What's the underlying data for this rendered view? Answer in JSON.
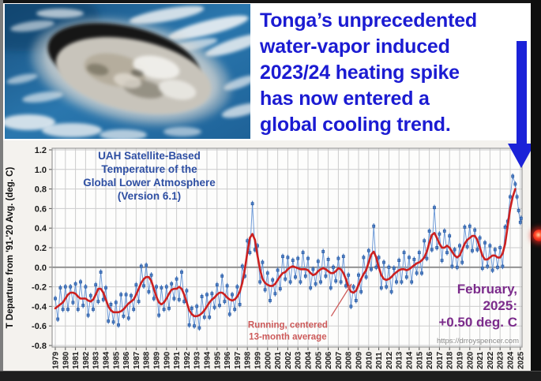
{
  "headline": {
    "color": "#1b1bd2",
    "lines": [
      "Tonga’s unprecedented",
      "water-vapor induced",
      "2023/24 heating spike",
      "has now entered a",
      "global cooling trend."
    ]
  },
  "arrow": {
    "color": "#1b22d8"
  },
  "indicator": {
    "color": "#e8281e"
  },
  "chart_data": {
    "type": "line",
    "title_lines": [
      "UAH Satellite-Based",
      "Temperature of the",
      "Global Lower Atmosphere",
      "(Version 6.1)"
    ],
    "title_color": "#2e4fa3",
    "ylabel": "T Departure from '91-'20 Avg. (deg. C)",
    "ylim": [
      -0.8,
      1.2
    ],
    "ytick_step": 0.2,
    "ytick_labels": [
      "1.2",
      "1.0",
      "0.8",
      "0.6",
      "0.4",
      "0.2",
      "0.0",
      "-0.2",
      "-0.4",
      "-0.6",
      "-0.8"
    ],
    "x_axis": {
      "start": 1979,
      "end": 2025
    },
    "years": [
      1979,
      1980,
      1981,
      1982,
      1983,
      1984,
      1985,
      1986,
      1987,
      1988,
      1989,
      1990,
      1991,
      1992,
      1993,
      1994,
      1995,
      1996,
      1997,
      1998,
      1999,
      2000,
      2001,
      2002,
      2003,
      2004,
      2005,
      2006,
      2007,
      2008,
      2009,
      2010,
      2011,
      2012,
      2013,
      2014,
      2015,
      2016,
      2017,
      2018,
      2019,
      2020,
      2021,
      2022,
      2023,
      2024,
      2025
    ],
    "grid": true,
    "legend_position": "none",
    "colors": {
      "canvas_bg": "#f4f2ee",
      "plot_bg": "#fdfdfc",
      "grid": "#cccccc",
      "zero_line": "#8c8c8c",
      "axis": "#9a9a9a",
      "tick_text": "#1a1a1a"
    },
    "annotation": {
      "text_lines": [
        "Running, centered",
        "13-month average"
      ],
      "color": "#cd5a5a",
      "text_at": {
        "x": 2002.0,
        "y": -0.62
      },
      "arrow_from": {
        "x": 2006.3,
        "y": -0.5
      },
      "arrow_to": {
        "x": 2008.3,
        "y": -0.17
      }
    },
    "value_label": {
      "lines": [
        "February,",
        "2025:",
        "+0.50 deg. C"
      ],
      "color": "#7b2b8b"
    },
    "watermark": "https://drroyspencer.com",
    "series": [
      {
        "name": "monthly-anomaly",
        "color": "#4a7ec6",
        "edge_color": "#2b5699",
        "line_color": "#6f9bd8",
        "marker": "square",
        "x_start": 1979.0,
        "x_step": 0.25,
        "y": [
          -0.32,
          -0.53,
          -0.21,
          -0.43,
          -0.2,
          -0.43,
          -0.2,
          -0.36,
          -0.17,
          -0.43,
          -0.15,
          -0.39,
          -0.2,
          -0.49,
          -0.29,
          -0.43,
          -0.18,
          -0.35,
          -0.05,
          -0.33,
          -0.21,
          -0.55,
          -0.38,
          -0.56,
          -0.36,
          -0.59,
          -0.28,
          -0.5,
          -0.28,
          -0.52,
          -0.29,
          -0.43,
          -0.18,
          -0.35,
          0.01,
          -0.19,
          0.02,
          -0.25,
          -0.08,
          -0.32,
          -0.2,
          -0.49,
          -0.21,
          -0.43,
          -0.2,
          -0.42,
          -0.17,
          -0.32,
          -0.12,
          -0.33,
          -0.05,
          -0.35,
          -0.24,
          -0.59,
          -0.42,
          -0.6,
          -0.4,
          -0.62,
          -0.3,
          -0.51,
          -0.28,
          -0.51,
          -0.27,
          -0.41,
          -0.18,
          -0.39,
          -0.09,
          -0.35,
          -0.19,
          -0.48,
          -0.28,
          -0.43,
          -0.2,
          -0.38,
          0.01,
          -0.09,
          0.27,
          0.15,
          0.65,
          0.18,
          0.22,
          -0.15,
          0.05,
          -0.23,
          -0.06,
          -0.34,
          -0.13,
          -0.27,
          -0.03,
          -0.22,
          0.11,
          -0.12,
          0.1,
          -0.15,
          0.07,
          -0.1,
          0.09,
          -0.15,
          0.15,
          -0.09,
          0.09,
          -0.21,
          -0.02,
          -0.17,
          0.06,
          -0.15,
          0.16,
          -0.09,
          0.08,
          -0.21,
          0.0,
          -0.14,
          0.09,
          -0.15,
          0.11,
          -0.19,
          -0.08,
          -0.4,
          -0.2,
          -0.34,
          -0.08,
          -0.25,
          0.1,
          -0.1,
          0.17,
          -0.02,
          0.42,
          0.0,
          0.1,
          -0.21,
          0.05,
          -0.2,
          0.0,
          -0.25,
          -0.01,
          -0.15,
          0.07,
          -0.15,
          0.15,
          -0.1,
          0.1,
          -0.15,
          0.08,
          -0.06,
          0.15,
          -0.06,
          0.27,
          0.09,
          0.37,
          0.18,
          0.61,
          0.2,
          0.34,
          0.07,
          0.37,
          0.15,
          0.32,
          0.01,
          0.18,
          0.0,
          0.22,
          0.05,
          0.41,
          0.21,
          0.42,
          0.17,
          0.38,
          0.18,
          0.3,
          -0.01,
          0.25,
          0.01,
          0.22,
          -0.03,
          0.18,
          0.0,
          0.2,
          0.01,
          0.41,
          0.47,
          0.72,
          0.93,
          0.85
        ],
        "extra": {
          "x": [
            2024.67,
            2024.83,
            2025.0,
            2025.083
          ],
          "y": [
            0.72,
            0.58,
            0.46,
            0.5
          ]
        }
      },
      {
        "name": "running-13-month-average",
        "color": "#cc2020",
        "x_start": 1979.0,
        "x_step": 0.25,
        "y": [
          -0.42,
          -0.4,
          -0.38,
          -0.36,
          -0.32,
          -0.28,
          -0.26,
          -0.26,
          -0.27,
          -0.3,
          -0.32,
          -0.32,
          -0.32,
          -0.34,
          -0.35,
          -0.33,
          -0.28,
          -0.22,
          -0.22,
          -0.26,
          -0.33,
          -0.4,
          -0.44,
          -0.46,
          -0.46,
          -0.46,
          -0.45,
          -0.43,
          -0.4,
          -0.37,
          -0.35,
          -0.33,
          -0.28,
          -0.22,
          -0.16,
          -0.12,
          -0.1,
          -0.1,
          -0.14,
          -0.22,
          -0.3,
          -0.36,
          -0.38,
          -0.36,
          -0.32,
          -0.27,
          -0.23,
          -0.22,
          -0.22,
          -0.2,
          -0.22,
          -0.28,
          -0.36,
          -0.44,
          -0.48,
          -0.5,
          -0.5,
          -0.49,
          -0.47,
          -0.44,
          -0.4,
          -0.36,
          -0.33,
          -0.31,
          -0.28,
          -0.26,
          -0.26,
          -0.28,
          -0.31,
          -0.33,
          -0.34,
          -0.33,
          -0.3,
          -0.25,
          -0.16,
          -0.02,
          0.15,
          0.3,
          0.34,
          0.28,
          0.12,
          -0.02,
          -0.12,
          -0.16,
          -0.18,
          -0.19,
          -0.19,
          -0.17,
          -0.13,
          -0.09,
          -0.06,
          -0.05,
          -0.02,
          0.0,
          0.01,
          0.0,
          -0.01,
          -0.02,
          -0.02,
          -0.02,
          -0.03,
          -0.06,
          -0.08,
          -0.07,
          -0.04,
          -0.02,
          -0.01,
          -0.02,
          -0.04,
          -0.06,
          -0.06,
          -0.04,
          -0.01,
          -0.02,
          -0.06,
          -0.12,
          -0.2,
          -0.25,
          -0.26,
          -0.24,
          -0.18,
          -0.12,
          -0.07,
          -0.03,
          0.05,
          0.13,
          0.16,
          0.1,
          0.0,
          -0.08,
          -0.12,
          -0.13,
          -0.12,
          -0.1,
          -0.07,
          -0.05,
          -0.03,
          -0.02,
          -0.02,
          -0.03,
          -0.02,
          0.0,
          0.02,
          0.04,
          0.05,
          0.07,
          0.1,
          0.16,
          0.25,
          0.33,
          0.35,
          0.3,
          0.24,
          0.2,
          0.2,
          0.22,
          0.2,
          0.16,
          0.12,
          0.1,
          0.12,
          0.18,
          0.24,
          0.28,
          0.3,
          0.32,
          0.32,
          0.28,
          0.2,
          0.12,
          0.08,
          0.08,
          0.1,
          0.12,
          0.12,
          0.1,
          0.1,
          0.14,
          0.24,
          0.42,
          0.6,
          0.72,
          0.8
        ]
      }
    ]
  }
}
